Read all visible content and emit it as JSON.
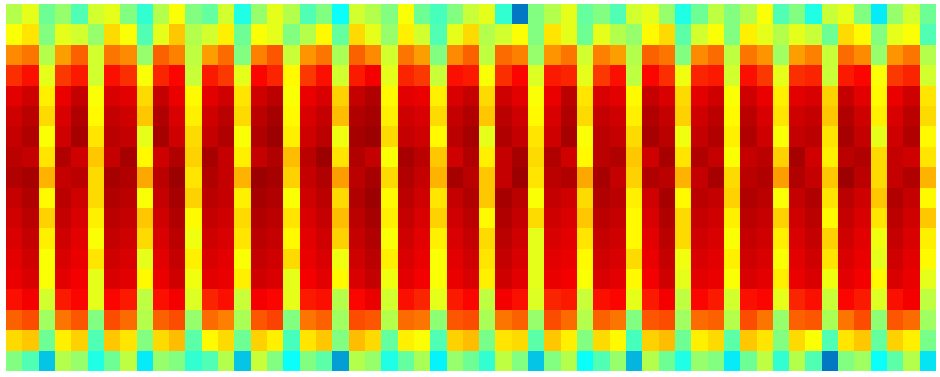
{
  "chart_data": {
    "type": "heatmap",
    "color": "Jet",
    "tick_labels": false,
    "zlim": [
      0,
      1
    ],
    "cells": [
      [
        0.55,
        0.6,
        0.48,
        0.52,
        0.45,
        0.58,
        0.6,
        0.5,
        0.42,
        0.55,
        0.62,
        0.5,
        0.47,
        0.58,
        0.4,
        0.52,
        0.6,
        0.55,
        0.45,
        0.5,
        0.38,
        0.58,
        0.55,
        0.5,
        0.62,
        0.48,
        0.44,
        0.5,
        0.57,
        0.6,
        0.42,
        0.2,
        0.5,
        0.55,
        0.6,
        0.47,
        0.5,
        0.45,
        0.58,
        0.6,
        0.52,
        0.4,
        0.48,
        0.56,
        0.5,
        0.55,
        0.62,
        0.45,
        0.5,
        0.4,
        0.57,
        0.6,
        0.5,
        0.35,
        0.52,
        0.58,
        0.48
      ],
      [
        0.62,
        0.65,
        0.5,
        0.6,
        0.58,
        0.52,
        0.66,
        0.62,
        0.45,
        0.6,
        0.68,
        0.55,
        0.58,
        0.64,
        0.48,
        0.62,
        0.6,
        0.5,
        0.55,
        0.63,
        0.47,
        0.66,
        0.6,
        0.52,
        0.64,
        0.58,
        0.45,
        0.6,
        0.66,
        0.55,
        0.58,
        0.62,
        0.5,
        0.65,
        0.6,
        0.48,
        0.6,
        0.55,
        0.52,
        0.63,
        0.66,
        0.46,
        0.58,
        0.62,
        0.5,
        0.64,
        0.6,
        0.55,
        0.6,
        0.57,
        0.48,
        0.66,
        0.63,
        0.5,
        0.6,
        0.62,
        0.45
      ],
      [
        0.74,
        0.76,
        0.55,
        0.72,
        0.78,
        0.58,
        0.76,
        0.74,
        0.52,
        0.78,
        0.75,
        0.56,
        0.72,
        0.77,
        0.5,
        0.75,
        0.79,
        0.57,
        0.73,
        0.76,
        0.54,
        0.78,
        0.74,
        0.58,
        0.76,
        0.72,
        0.5,
        0.74,
        0.78,
        0.56,
        0.77,
        0.75,
        0.52,
        0.73,
        0.76,
        0.58,
        0.75,
        0.72,
        0.55,
        0.78,
        0.76,
        0.5,
        0.74,
        0.77,
        0.56,
        0.76,
        0.73,
        0.53,
        0.72,
        0.75,
        0.57,
        0.77,
        0.74,
        0.52,
        0.73,
        0.76,
        0.55
      ],
      [
        0.83,
        0.86,
        0.6,
        0.82,
        0.85,
        0.58,
        0.86,
        0.83,
        0.62,
        0.84,
        0.87,
        0.57,
        0.85,
        0.82,
        0.6,
        0.87,
        0.84,
        0.63,
        0.82,
        0.86,
        0.58,
        0.85,
        0.88,
        0.6,
        0.84,
        0.82,
        0.57,
        0.86,
        0.85,
        0.62,
        0.83,
        0.87,
        0.59,
        0.85,
        0.84,
        0.6,
        0.82,
        0.86,
        0.56,
        0.87,
        0.83,
        0.61,
        0.84,
        0.85,
        0.58,
        0.86,
        0.82,
        0.6,
        0.83,
        0.84,
        0.57,
        0.85,
        0.87,
        0.62,
        0.82,
        0.84,
        0.58
      ],
      [
        0.9,
        0.92,
        0.64,
        0.89,
        0.93,
        0.62,
        0.91,
        0.9,
        0.66,
        0.93,
        0.89,
        0.63,
        0.9,
        0.92,
        0.65,
        0.92,
        0.94,
        0.62,
        0.89,
        0.91,
        0.67,
        0.93,
        0.95,
        0.63,
        0.9,
        0.89,
        0.64,
        0.91,
        0.93,
        0.66,
        0.92,
        0.9,
        0.62,
        0.89,
        0.94,
        0.65,
        0.91,
        0.9,
        0.63,
        0.93,
        0.91,
        0.66,
        0.9,
        0.92,
        0.62,
        0.92,
        0.89,
        0.64,
        0.9,
        0.91,
        0.67,
        0.93,
        0.9,
        0.63,
        0.89,
        0.92,
        0.65
      ],
      [
        0.92,
        0.94,
        0.66,
        0.91,
        0.95,
        0.63,
        0.93,
        0.92,
        0.68,
        0.95,
        0.91,
        0.64,
        0.92,
        0.94,
        0.66,
        0.94,
        0.96,
        0.63,
        0.91,
        0.93,
        0.69,
        0.95,
        0.96,
        0.64,
        0.92,
        0.91,
        0.66,
        0.93,
        0.95,
        0.68,
        0.94,
        0.92,
        0.63,
        0.91,
        0.95,
        0.66,
        0.93,
        0.92,
        0.64,
        0.95,
        0.93,
        0.67,
        0.92,
        0.94,
        0.63,
        0.94,
        0.91,
        0.65,
        0.92,
        0.93,
        0.68,
        0.95,
        0.92,
        0.64,
        0.91,
        0.94,
        0.66
      ],
      [
        0.93,
        0.95,
        0.62,
        0.92,
        0.96,
        0.65,
        0.94,
        0.93,
        0.6,
        0.96,
        0.92,
        0.66,
        0.93,
        0.95,
        0.62,
        0.95,
        0.97,
        0.64,
        0.92,
        0.94,
        0.61,
        0.96,
        0.97,
        0.66,
        0.93,
        0.92,
        0.63,
        0.94,
        0.96,
        0.6,
        0.95,
        0.93,
        0.65,
        0.92,
        0.96,
        0.62,
        0.94,
        0.93,
        0.66,
        0.96,
        0.94,
        0.61,
        0.93,
        0.95,
        0.64,
        0.95,
        0.92,
        0.62,
        0.93,
        0.94,
        0.65,
        0.96,
        0.93,
        0.6,
        0.92,
        0.95,
        0.63
      ],
      [
        0.94,
        0.93,
        0.65,
        0.95,
        0.92,
        0.68,
        0.93,
        0.96,
        0.63,
        0.92,
        0.95,
        0.67,
        0.96,
        0.93,
        0.64,
        0.93,
        0.95,
        0.69,
        0.94,
        0.97,
        0.65,
        0.95,
        0.93,
        0.62,
        0.96,
        0.94,
        0.68,
        0.92,
        0.95,
        0.64,
        0.93,
        0.96,
        0.66,
        0.95,
        0.92,
        0.63,
        0.94,
        0.95,
        0.68,
        0.92,
        0.96,
        0.65,
        0.95,
        0.93,
        0.62,
        0.93,
        0.94,
        0.67,
        0.96,
        0.92,
        0.64,
        0.94,
        0.95,
        0.66,
        0.93,
        0.92,
        0.65
      ],
      [
        0.95,
        0.96,
        0.7,
        0.93,
        0.94,
        0.66,
        0.96,
        0.95,
        0.71,
        0.94,
        0.97,
        0.65,
        0.95,
        0.93,
        0.7,
        0.97,
        0.96,
        0.67,
        0.93,
        0.95,
        0.72,
        0.94,
        0.96,
        0.66,
        0.95,
        0.93,
        0.7,
        0.96,
        0.94,
        0.68,
        0.93,
        0.97,
        0.65,
        0.94,
        0.95,
        0.71,
        0.96,
        0.93,
        0.67,
        0.95,
        0.94,
        0.7,
        0.93,
        0.96,
        0.66,
        0.94,
        0.95,
        0.72,
        0.95,
        0.93,
        0.68,
        0.97,
        0.94,
        0.66,
        0.93,
        0.95,
        0.7
      ],
      [
        0.93,
        0.95,
        0.63,
        0.94,
        0.92,
        0.66,
        0.95,
        0.94,
        0.62,
        0.93,
        0.96,
        0.67,
        0.94,
        0.93,
        0.64,
        0.96,
        0.95,
        0.62,
        0.92,
        0.94,
        0.66,
        0.95,
        0.97,
        0.63,
        0.94,
        0.92,
        0.65,
        0.93,
        0.95,
        0.68,
        0.96,
        0.94,
        0.62,
        0.93,
        0.92,
        0.66,
        0.95,
        0.94,
        0.64,
        0.92,
        0.96,
        0.63,
        0.94,
        0.93,
        0.67,
        0.95,
        0.94,
        0.62,
        0.93,
        0.95,
        0.65,
        0.94,
        0.92,
        0.68,
        0.95,
        0.93,
        0.63
      ],
      [
        0.92,
        0.94,
        0.67,
        0.93,
        0.91,
        0.64,
        0.94,
        0.93,
        0.68,
        0.92,
        0.95,
        0.63,
        0.93,
        0.92,
        0.66,
        0.95,
        0.94,
        0.65,
        0.91,
        0.93,
        0.69,
        0.94,
        0.96,
        0.64,
        0.93,
        0.91,
        0.67,
        0.92,
        0.94,
        0.63,
        0.95,
        0.93,
        0.66,
        0.92,
        0.91,
        0.68,
        0.94,
        0.93,
        0.63,
        0.91,
        0.95,
        0.66,
        0.93,
        0.92,
        0.64,
        0.94,
        0.93,
        0.67,
        0.92,
        0.94,
        0.63,
        0.93,
        0.91,
        0.65,
        0.94,
        0.92,
        0.68
      ],
      [
        0.91,
        0.93,
        0.64,
        0.92,
        0.9,
        0.62,
        0.93,
        0.92,
        0.66,
        0.91,
        0.94,
        0.61,
        0.92,
        0.91,
        0.65,
        0.94,
        0.93,
        0.63,
        0.9,
        0.92,
        0.67,
        0.93,
        0.95,
        0.62,
        0.92,
        0.9,
        0.64,
        0.91,
        0.93,
        0.66,
        0.94,
        0.92,
        0.6,
        0.91,
        0.9,
        0.65,
        0.93,
        0.92,
        0.63,
        0.9,
        0.94,
        0.66,
        0.92,
        0.91,
        0.62,
        0.93,
        0.92,
        0.64,
        0.91,
        0.93,
        0.67,
        0.92,
        0.9,
        0.61,
        0.93,
        0.91,
        0.64
      ],
      [
        0.9,
        0.92,
        0.62,
        0.91,
        0.89,
        0.65,
        0.92,
        0.91,
        0.6,
        0.9,
        0.93,
        0.64,
        0.91,
        0.9,
        0.62,
        0.93,
        0.92,
        0.66,
        0.89,
        0.91,
        0.61,
        0.92,
        0.94,
        0.64,
        0.91,
        0.89,
        0.62,
        0.9,
        0.92,
        0.65,
        0.93,
        0.91,
        0.6,
        0.9,
        0.89,
        0.63,
        0.92,
        0.91,
        0.66,
        0.89,
        0.93,
        0.61,
        0.91,
        0.9,
        0.64,
        0.92,
        0.91,
        0.62,
        0.9,
        0.92,
        0.65,
        0.91,
        0.89,
        0.6,
        0.92,
        0.9,
        0.63
      ],
      [
        0.89,
        0.91,
        0.62,
        0.9,
        0.88,
        0.6,
        0.91,
        0.9,
        0.63,
        0.89,
        0.92,
        0.61,
        0.9,
        0.89,
        0.64,
        0.92,
        0.91,
        0.6,
        0.88,
        0.9,
        0.63,
        0.91,
        0.93,
        0.61,
        0.9,
        0.88,
        0.62,
        0.89,
        0.91,
        0.64,
        0.92,
        0.9,
        0.6,
        0.89,
        0.88,
        0.62,
        0.91,
        0.9,
        0.63,
        0.88,
        0.92,
        0.6,
        0.9,
        0.89,
        0.62,
        0.91,
        0.9,
        0.64,
        0.89,
        0.91,
        0.61,
        0.9,
        0.88,
        0.63,
        0.91,
        0.89,
        0.6
      ],
      [
        0.86,
        0.88,
        0.58,
        0.85,
        0.87,
        0.6,
        0.87,
        0.85,
        0.56,
        0.86,
        0.88,
        0.59,
        0.84,
        0.86,
        0.57,
        0.88,
        0.87,
        0.6,
        0.85,
        0.86,
        0.55,
        0.87,
        0.89,
        0.58,
        0.86,
        0.84,
        0.6,
        0.85,
        0.87,
        0.56,
        0.88,
        0.86,
        0.59,
        0.84,
        0.85,
        0.57,
        0.86,
        0.87,
        0.6,
        0.85,
        0.88,
        0.56,
        0.87,
        0.85,
        0.58,
        0.86,
        0.87,
        0.6,
        0.84,
        0.86,
        0.57,
        0.87,
        0.85,
        0.59,
        0.86,
        0.88,
        0.56
      ],
      [
        0.78,
        0.8,
        0.53,
        0.76,
        0.79,
        0.5,
        0.8,
        0.77,
        0.55,
        0.78,
        0.8,
        0.52,
        0.77,
        0.75,
        0.54,
        0.79,
        0.81,
        0.5,
        0.76,
        0.78,
        0.53,
        0.8,
        0.79,
        0.55,
        0.77,
        0.76,
        0.51,
        0.79,
        0.8,
        0.54,
        0.76,
        0.78,
        0.52,
        0.8,
        0.77,
        0.55,
        0.78,
        0.76,
        0.5,
        0.79,
        0.8,
        0.53,
        0.77,
        0.78,
        0.55,
        0.8,
        0.76,
        0.52,
        0.78,
        0.79,
        0.54,
        0.76,
        0.8,
        0.51,
        0.79,
        0.77,
        0.53
      ],
      [
        0.66,
        0.68,
        0.48,
        0.64,
        0.67,
        0.45,
        0.68,
        0.65,
        0.5,
        0.66,
        0.69,
        0.46,
        0.63,
        0.66,
        0.48,
        0.67,
        0.64,
        0.44,
        0.65,
        0.68,
        0.5,
        0.69,
        0.66,
        0.47,
        0.64,
        0.62,
        0.45,
        0.67,
        0.69,
        0.49,
        0.65,
        0.66,
        0.46,
        0.68,
        0.64,
        0.5,
        0.66,
        0.63,
        0.44,
        0.67,
        0.69,
        0.48,
        0.64,
        0.66,
        0.46,
        0.68,
        0.65,
        0.5,
        0.66,
        0.62,
        0.45,
        0.65,
        0.68,
        0.47,
        0.67,
        0.64,
        0.49
      ],
      [
        0.5,
        0.45,
        0.3,
        0.55,
        0.52,
        0.4,
        0.48,
        0.56,
        0.35,
        0.52,
        0.5,
        0.42,
        0.45,
        0.55,
        0.3,
        0.57,
        0.5,
        0.38,
        0.5,
        0.46,
        0.25,
        0.55,
        0.52,
        0.4,
        0.47,
        0.54,
        0.36,
        0.52,
        0.48,
        0.42,
        0.56,
        0.5,
        0.3,
        0.5,
        0.55,
        0.38,
        0.45,
        0.52,
        0.28,
        0.55,
        0.48,
        0.4,
        0.52,
        0.5,
        0.35,
        0.48,
        0.56,
        0.42,
        0.55,
        0.45,
        0.2,
        0.5,
        0.53,
        0.38,
        0.46,
        0.55,
        0.34
      ]
    ]
  }
}
